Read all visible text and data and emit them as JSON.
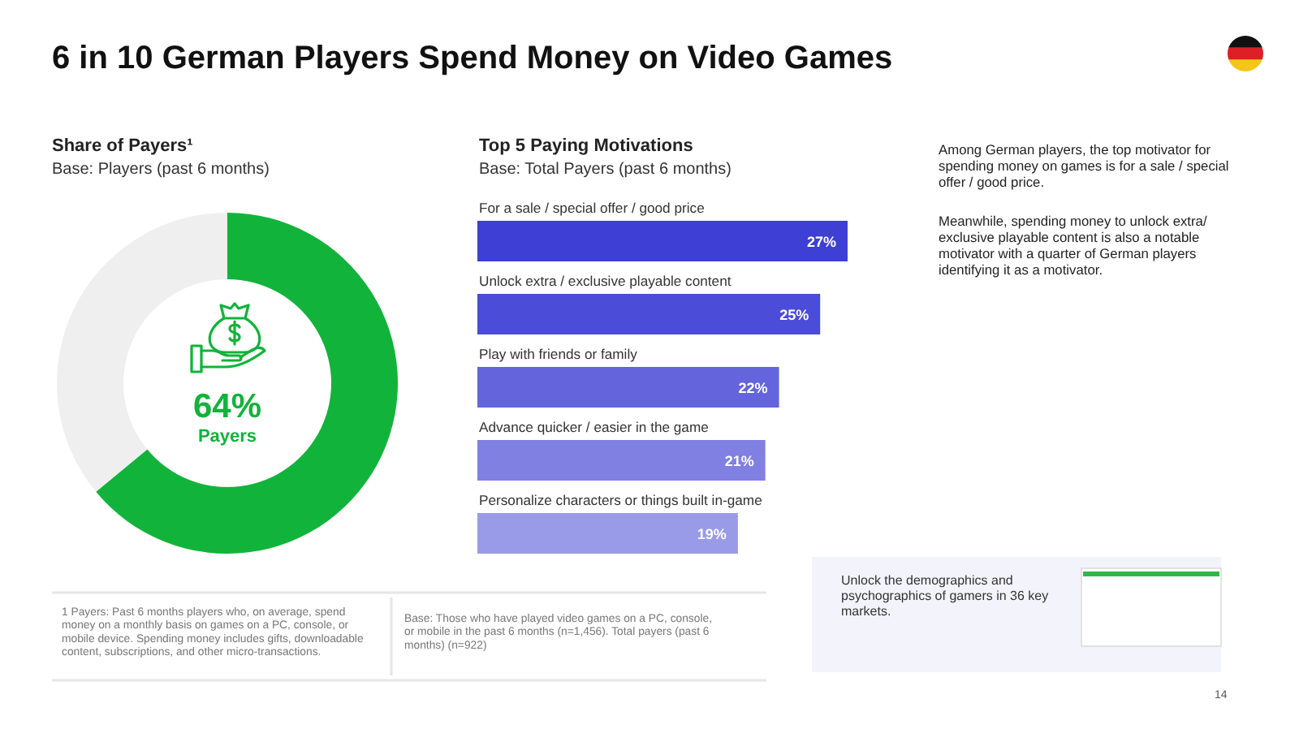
{
  "chart_data": [
    {
      "type": "donut",
      "title": "Share of Payers¹",
      "subtitle": "Base: Players (past 6 months)",
      "categories": [
        "Payers",
        null
      ],
      "values": [
        64,
        36
      ],
      "colors": [
        "#12b33a",
        "#efefef"
      ],
      "value_labels": [
        "64%",
        null
      ]
    },
    {
      "type": "bar",
      "orientation": "horizontal",
      "title": "Top 5 Paying Motivations",
      "subtitle": "Base: Total Payers (past 6 months)",
      "categories": [
        "For a sale / special offer / good price",
        "Unlock extra / exclusive playable content",
        "Play with friends or family",
        "Advance quicker / easier in the game",
        "Personalize characters or things built in-game"
      ],
      "values": [
        27,
        25,
        22,
        21,
        19
      ],
      "colors": [
        "#3e3fd4",
        "#4b4cd8",
        "#6465dc",
        "#7f80e2",
        "#9a9be8"
      ],
      "value_labels": [
        "27%",
        "25%",
        "22%",
        "21%",
        "19%"
      ]
    },
    {
      "type": "other",
      "title": "6 in 10 German Players Spend Money on Video Games",
      "annotations": [
        "Among German players, the top motivator for spending money on games is for a sale / special offer / good price.",
        "Meanwhile, spending money to unlock extra/ exclusive playable content is also a notable motivator with a quarter of German players identifying it as a motivator.",
        "1 Payers: Past 6 months players who, on average, spend money on a monthly basis on games on a PC, console, or mobile device. Spending money includes gifts, downloadable content, subscriptions, and other micro-transactions.",
        "Base: Those who have played video games on a PC, console, or mobile in the past 6 months (n=1,456). Total payers (past 6 months) (n=922)",
        "Unlock the demographics and psychographics of gamers in 36 key markets.",
        "14"
      ]
    }
  ]
}
